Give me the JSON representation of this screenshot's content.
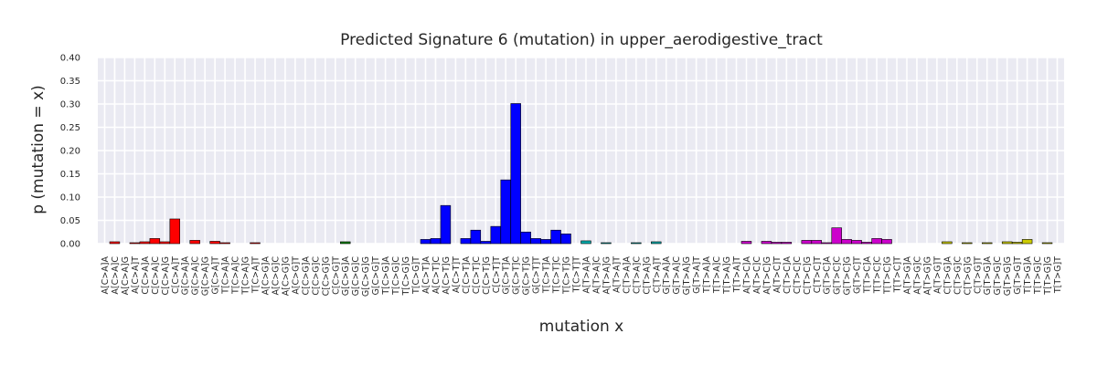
{
  "chart_data": {
    "type": "bar",
    "title": "Predicted Signature 6 (mutation) in upper_aerodigestive_tract",
    "xlabel": "mutation x",
    "ylabel": "p (mutation = x)",
    "ylim": [
      0,
      0.4
    ],
    "yticks": [
      "0.00",
      "0.05",
      "0.10",
      "0.15",
      "0.20",
      "0.25",
      "0.30",
      "0.35",
      "0.40"
    ],
    "grid": true,
    "categories": [
      "A[C>A]A",
      "A[C>A]C",
      "A[C>A]G",
      "A[C>A]T",
      "C[C>A]A",
      "C[C>A]C",
      "C[C>A]G",
      "C[C>A]T",
      "G[C>A]A",
      "G[C>A]C",
      "G[C>A]G",
      "G[C>A]T",
      "T[C>A]A",
      "T[C>A]C",
      "T[C>A]G",
      "T[C>A]T",
      "A[C>G]A",
      "A[C>G]C",
      "A[C>G]G",
      "A[C>G]T",
      "C[C>G]A",
      "C[C>G]C",
      "C[C>G]G",
      "C[C>G]T",
      "G[C>G]A",
      "G[C>G]C",
      "G[C>G]G",
      "G[C>G]T",
      "T[C>G]A",
      "T[C>G]C",
      "T[C>G]G",
      "T[C>G]T",
      "A[C>T]A",
      "A[C>T]C",
      "A[C>T]G",
      "A[C>T]T",
      "C[C>T]A",
      "C[C>T]C",
      "C[C>T]G",
      "C[C>T]T",
      "G[C>T]A",
      "G[C>T]C",
      "G[C>T]G",
      "G[C>T]T",
      "T[C>T]A",
      "T[C>T]C",
      "T[C>T]G",
      "T[C>T]T",
      "A[T>A]A",
      "A[T>A]C",
      "A[T>A]G",
      "A[T>A]T",
      "C[T>A]A",
      "C[T>A]C",
      "C[T>A]G",
      "C[T>A]T",
      "G[T>A]A",
      "G[T>A]C",
      "G[T>A]G",
      "G[T>A]T",
      "T[T>A]A",
      "T[T>A]C",
      "T[T>A]G",
      "T[T>A]T",
      "A[T>C]A",
      "A[T>C]C",
      "A[T>C]G",
      "A[T>C]T",
      "C[T>C]A",
      "C[T>C]C",
      "C[T>C]G",
      "C[T>C]T",
      "G[T>C]A",
      "G[T>C]C",
      "G[T>C]G",
      "G[T>C]T",
      "T[T>C]A",
      "T[T>C]C",
      "T[T>C]G",
      "T[T>C]T",
      "A[T>G]A",
      "A[T>G]C",
      "A[T>G]G",
      "A[T>G]T",
      "C[T>G]A",
      "C[T>G]C",
      "C[T>G]G",
      "C[T>G]T",
      "G[T>G]A",
      "G[T>G]C",
      "G[T>G]G",
      "G[T>G]T",
      "T[T>G]A",
      "T[T>G]C",
      "T[T>G]G",
      "T[T>G]T"
    ],
    "values": [
      0.0,
      0.004,
      0.0,
      0.002,
      0.004,
      0.011,
      0.004,
      0.053,
      0.0,
      0.007,
      0.0,
      0.005,
      0.002,
      0.0,
      0.0,
      0.002,
      0.0,
      0.0,
      0.0,
      0.0,
      0.0,
      0.0,
      0.0,
      0.0,
      0.004,
      0.0,
      0.0,
      0.0,
      0.0,
      0.0,
      0.0,
      0.0,
      0.009,
      0.011,
      0.082,
      0.0,
      0.011,
      0.029,
      0.005,
      0.037,
      0.137,
      0.301,
      0.025,
      0.011,
      0.009,
      0.029,
      0.021,
      0.0,
      0.006,
      0.0,
      0.002,
      0.0,
      0.0,
      0.002,
      0.0,
      0.004,
      0.0,
      0.0,
      0.0,
      0.0,
      0.0,
      0.0,
      0.0,
      0.0,
      0.005,
      0.0,
      0.005,
      0.003,
      0.003,
      0.0,
      0.007,
      0.007,
      0.002,
      0.034,
      0.009,
      0.007,
      0.003,
      0.011,
      0.009,
      0.0,
      0.0,
      0.0,
      0.0,
      0.0,
      0.004,
      0.0,
      0.002,
      0.0,
      0.002,
      0.0,
      0.004,
      0.003,
      0.009,
      0.0,
      0.002,
      0.0
    ],
    "group_colors": [
      "#ff0000",
      "#008000",
      "#0000ff",
      "#00aaaa",
      "#cc00cc",
      "#cccc00"
    ],
    "background_color": "#eaeaf2",
    "grid_color": "#ffffff"
  }
}
